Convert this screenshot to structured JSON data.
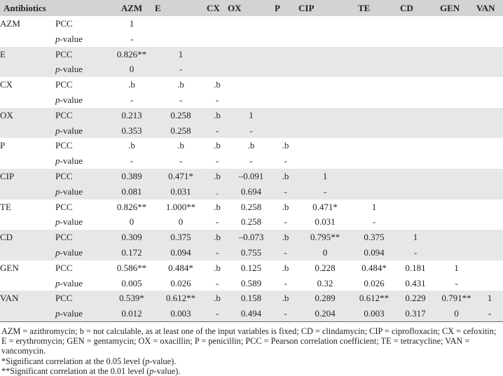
{
  "header": {
    "first": "Antibiotics",
    "columns": [
      "AZM",
      "E",
      "CX",
      "OX",
      "P",
      "CIP",
      "TE",
      "CD",
      "GEN",
      "VAN"
    ]
  },
  "rows": [
    {
      "name": "AZM",
      "pcc": [
        "1"
      ],
      "p": [
        "-"
      ]
    },
    {
      "name": "E",
      "pcc": [
        "0.826**",
        "1"
      ],
      "p": [
        "0",
        "-"
      ]
    },
    {
      "name": "CX",
      "pcc": [
        ".b",
        ".b",
        ".b"
      ],
      "p": [
        "-",
        "-",
        "-"
      ]
    },
    {
      "name": "OX",
      "pcc": [
        "0.213",
        "0.258",
        ".b",
        "1"
      ],
      "p": [
        "0.353",
        "0.258",
        "-",
        "-"
      ]
    },
    {
      "name": "P",
      "pcc": [
        ".b",
        ".b",
        ".b",
        ".b",
        ".b"
      ],
      "p": [
        "-",
        "-",
        "-",
        "-",
        "-"
      ]
    },
    {
      "name": "CIP",
      "pcc": [
        "0.389",
        "0.471*",
        ".b",
        "–0.091",
        ".b",
        "1"
      ],
      "p": [
        "0.081",
        "0.031",
        ".",
        "0.694",
        "-",
        "-"
      ]
    },
    {
      "name": "TE",
      "pcc": [
        "0.826**",
        "1.000**",
        ".b",
        "0.258",
        ".b",
        "0.471*",
        "1"
      ],
      "p": [
        "0",
        "0",
        "-",
        "0.258",
        "-",
        "0.031",
        "-"
      ]
    },
    {
      "name": "CD",
      "pcc": [
        "0.309",
        "0.375",
        ".b",
        "–0.073",
        ".b",
        "0.795**",
        "0.375",
        "1"
      ],
      "p": [
        "0.172",
        "0.094",
        "-",
        "0.755",
        "-",
        "0",
        "0.094",
        "-"
      ]
    },
    {
      "name": "GEN",
      "pcc": [
        "0.586**",
        "0.484*",
        ".b",
        "0.125",
        ".b",
        "0.228",
        "0.484*",
        "0.181",
        "1"
      ],
      "p": [
        "0.005",
        "0.026",
        "-",
        "0.589",
        "-",
        "0.32",
        "0.026",
        "0.431",
        "-"
      ]
    },
    {
      "name": "VAN",
      "pcc": [
        "0.539*",
        "0.612**",
        ".b",
        "0.158",
        ".b",
        "0.289",
        "0.612**",
        "0.229",
        "0.791**",
        "1"
      ],
      "p": [
        "0.012",
        "0.003",
        "-",
        "0.494",
        "-",
        "0.204",
        "0.003",
        "0.317",
        "0",
        "-"
      ]
    }
  ],
  "labels": {
    "pcc": "PCC",
    "p_italic": "p",
    "p_rest": "-value"
  },
  "footnotes": {
    "abbreviations": "AZM = azithromycin; b = not calculable, as at least one of the input variables is fixed; CD = clindamycin; CIP = ciprofloxacin; CX = cefoxitin; E = erythromycin; GEN = gentamycin; OX = oxacillin; P = penicillin; PCC = Pearson correlation coefficient; TE = tetracycline; VAN = vancomycin.",
    "sig05_pre": "*Significant correlation at the 0.05 level (",
    "sig05_p": "p",
    "sig05_post": "-value).",
    "sig01_pre": "**Significant correlation at the 0.01 level (",
    "sig01_p": "p",
    "sig01_post": "-value)."
  }
}
